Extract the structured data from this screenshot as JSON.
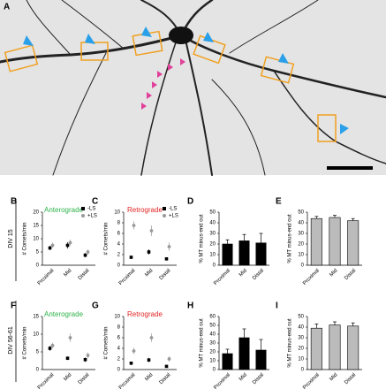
{
  "panel_a": {
    "label": "A"
  },
  "row_labels": [
    "DIV 15",
    "DIV 56-61"
  ],
  "chart_data": [
    {
      "panel": "B",
      "type": "dot",
      "title": "Anterograde",
      "title_color": "#2db34a",
      "y_label": "# Comets/min",
      "categories": [
        "Proximal",
        "Mid",
        "Distal"
      ],
      "ylim": [
        0,
        20
      ],
      "yticks": [
        0,
        5,
        10,
        15,
        20
      ],
      "legend": "upper right",
      "series": [
        {
          "name": "-LS",
          "color": "#000000",
          "marker": "square",
          "values": [
            6.5,
            7.5,
            3.8
          ],
          "errors": [
            0.8,
            1.2,
            0.8
          ]
        },
        {
          "name": "+LS",
          "color": "#999999",
          "marker": "circle",
          "values": [
            7.5,
            8.5,
            5
          ],
          "errors": [
            1,
            1.2,
            1
          ]
        }
      ]
    },
    {
      "panel": "C",
      "type": "dot",
      "title": "Retrograde",
      "title_color": "#e02424",
      "y_label": "# Comets/min",
      "categories": [
        "Proximal",
        "Mid",
        "Distal"
      ],
      "ylim": [
        0,
        10
      ],
      "yticks": [
        0,
        2,
        4,
        6,
        8,
        10
      ],
      "legend": "upper right",
      "series": [
        {
          "name": "-LS",
          "color": "#000000",
          "marker": "square",
          "values": [
            1.5,
            2.5,
            1.2
          ],
          "errors": [
            0.3,
            0.5,
            0.3
          ]
        },
        {
          "name": "+LS",
          "color": "#999999",
          "marker": "circle",
          "values": [
            7.5,
            6.5,
            3.5
          ],
          "errors": [
            0.8,
            1,
            0.8
          ]
        }
      ]
    },
    {
      "panel": "D",
      "type": "bar",
      "y_label": "% MT minus-end out",
      "categories": [
        "Proximal",
        "Mid",
        "Distal"
      ],
      "ylim": [
        0,
        50
      ],
      "yticks": [
        0,
        10,
        20,
        30,
        40,
        50
      ],
      "series": [
        {
          "color": "#000000",
          "values": [
            20,
            23,
            21
          ],
          "errors": [
            4,
            6,
            9
          ]
        }
      ]
    },
    {
      "panel": "E",
      "type": "bar",
      "y_label": "% MT minus-end out",
      "categories": [
        "Proximal",
        "Mid",
        "Distal"
      ],
      "ylim": [
        0,
        50
      ],
      "yticks": [
        0,
        10,
        20,
        30,
        40,
        50
      ],
      "series": [
        {
          "color": "#bbbbbb",
          "values": [
            44,
            45,
            42
          ],
          "errors": [
            2,
            2,
            2
          ]
        }
      ]
    },
    {
      "panel": "F",
      "type": "dot",
      "title": "Anterograde",
      "title_color": "#2db34a",
      "y_label": "# Comets/min",
      "categories": [
        "Proximal",
        "Mid",
        "Distal"
      ],
      "ylim": [
        0,
        15
      ],
      "yticks": [
        0,
        5,
        10,
        15
      ],
      "series": [
        {
          "name": "-LS",
          "color": "#000000",
          "marker": "square",
          "values": [
            6,
            3.2,
            2.8
          ],
          "errors": [
            0.7,
            0.5,
            0.6
          ]
        },
        {
          "name": "+LS",
          "color": "#999999",
          "marker": "circle",
          "values": [
            6.8,
            9,
            4
          ],
          "errors": [
            0.8,
            1.2,
            0.8
          ]
        }
      ]
    },
    {
      "panel": "G",
      "type": "dot",
      "title": "Retrograde",
      "title_color": "#e02424",
      "y_label": "# Comets/min",
      "categories": [
        "Proximal",
        "Mid",
        "Distal"
      ],
      "ylim": [
        0,
        10
      ],
      "yticks": [
        0,
        2,
        4,
        6,
        8,
        10
      ],
      "series": [
        {
          "name": "-LS",
          "color": "#000000",
          "marker": "square",
          "values": [
            1.2,
            1.8,
            0.6
          ],
          "errors": [
            0.3,
            0.4,
            0.2
          ]
        },
        {
          "name": "+LS",
          "color": "#999999",
          "marker": "circle",
          "values": [
            3.5,
            6,
            2
          ],
          "errors": [
            0.6,
            0.8,
            0.5
          ]
        }
      ]
    },
    {
      "panel": "H",
      "type": "bar",
      "y_label": "% MT minus-end out",
      "categories": [
        "Proximal",
        "Mid",
        "Distal"
      ],
      "ylim": [
        0,
        60
      ],
      "yticks": [
        0,
        10,
        20,
        30,
        40,
        50,
        60
      ],
      "series": [
        {
          "color": "#000000",
          "values": [
            18,
            36,
            22
          ],
          "errors": [
            5,
            10,
            12
          ]
        }
      ]
    },
    {
      "panel": "I",
      "type": "bar",
      "y_label": "% MT minus-end out",
      "categories": [
        "Proximal",
        "Mid",
        "Distal"
      ],
      "ylim": [
        0,
        50
      ],
      "yticks": [
        0,
        10,
        20,
        30,
        40,
        50
      ],
      "series": [
        {
          "color": "#bbbbbb",
          "values": [
            39,
            42,
            41
          ],
          "errors": [
            4,
            3,
            3
          ]
        }
      ]
    }
  ]
}
